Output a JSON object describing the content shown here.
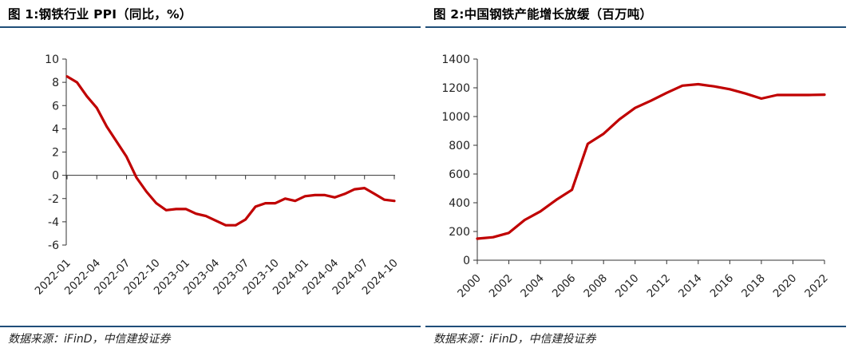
{
  "figures": [
    {
      "title": "图 1:钢铁行业 PPI（同比，%）",
      "source": "数据来源：iFinD，中信建投证券"
    },
    {
      "title": "图 2:中国钢铁产能增长放缓（百万吨）",
      "source": "数据来源：iFinD，中信建投证券"
    }
  ],
  "chart_data": [
    {
      "type": "line",
      "title": "钢铁行业 PPI（同比，%）",
      "xlabel": "",
      "ylabel": "",
      "ylim": [
        -6,
        10
      ],
      "yticks": [
        10,
        8,
        6,
        4,
        2,
        0,
        -2,
        -4,
        -6
      ],
      "xticks": [
        "2022-01",
        "2022-04",
        "2022-07",
        "2022-10",
        "2023-01",
        "2023-04",
        "2023-07",
        "2023-10",
        "2024-01",
        "2024-04",
        "2024-07",
        "2024-10"
      ],
      "grid": false,
      "legend": "none",
      "line_color": "#c00000",
      "series": [
        {
          "x": [
            "2022-01",
            "2022-02",
            "2022-03",
            "2022-04",
            "2022-05",
            "2022-06",
            "2022-07",
            "2022-08",
            "2022-09",
            "2022-10",
            "2022-11",
            "2022-12",
            "2023-01",
            "2023-02",
            "2023-03",
            "2023-04",
            "2023-05",
            "2023-06",
            "2023-07",
            "2023-08",
            "2023-09",
            "2023-10",
            "2023-11",
            "2023-12",
            "2024-01",
            "2024-02",
            "2024-03",
            "2024-04",
            "2024-05",
            "2024-06",
            "2024-07",
            "2024-08",
            "2024-09",
            "2024-10"
          ],
          "values": [
            8.5,
            8.0,
            6.8,
            5.8,
            4.2,
            2.9,
            1.6,
            -0.2,
            -1.4,
            -2.4,
            -3.0,
            -2.9,
            -2.9,
            -3.3,
            -3.5,
            -3.9,
            -4.3,
            -4.3,
            -3.8,
            -2.7,
            -2.4,
            -2.4,
            -2.0,
            -2.2,
            -1.8,
            -1.7,
            -1.7,
            -1.9,
            -1.6,
            -1.2,
            -1.1,
            -1.6,
            -2.1,
            -2.2
          ]
        }
      ]
    },
    {
      "type": "line",
      "title": "中国钢铁产能增长放缓（百万吨）",
      "xlabel": "",
      "ylabel": "",
      "ylim": [
        0,
        1400
      ],
      "yticks": [
        1400,
        1200,
        1000,
        800,
        600,
        400,
        200,
        0
      ],
      "xticks": [
        "2000",
        "2002",
        "2004",
        "2006",
        "2008",
        "2010",
        "2012",
        "2014",
        "2016",
        "2018",
        "2020",
        "2022"
      ],
      "grid": false,
      "legend": "none",
      "line_color": "#c00000",
      "series": [
        {
          "x": [
            2000,
            2001,
            2002,
            2003,
            2004,
            2005,
            2006,
            2007,
            2008,
            2009,
            2010,
            2011,
            2012,
            2013,
            2014,
            2015,
            2016,
            2017,
            2018,
            2019,
            2020,
            2021,
            2022
          ],
          "values": [
            150,
            160,
            190,
            280,
            340,
            420,
            490,
            810,
            880,
            980,
            1060,
            1110,
            1165,
            1215,
            1225,
            1210,
            1190,
            1160,
            1125,
            1150,
            1150,
            1150,
            1152
          ]
        }
      ]
    }
  ]
}
